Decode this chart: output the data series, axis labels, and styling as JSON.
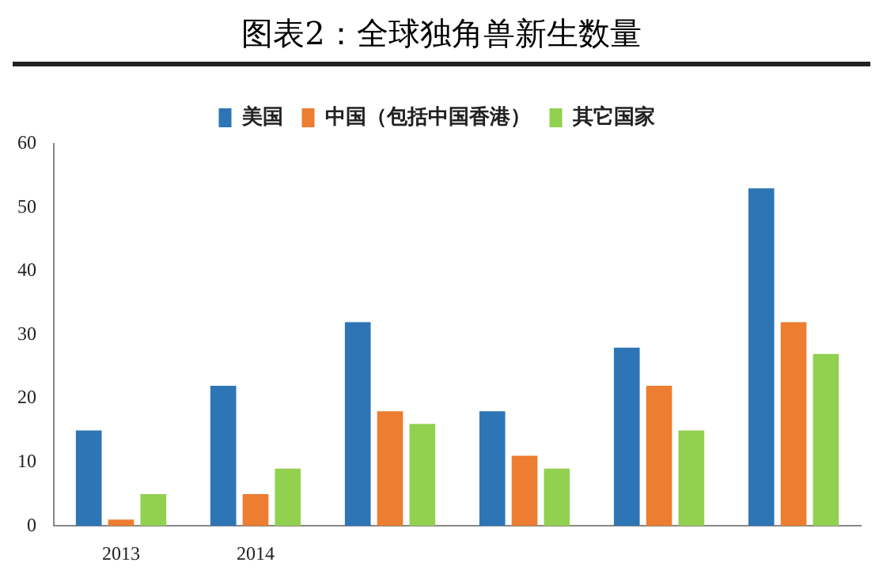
{
  "chart_data": {
    "type": "bar",
    "title": "图表2：全球独角兽新生数量",
    "categories": [
      "2013",
      "2014",
      null,
      null,
      null,
      null
    ],
    "series": [
      {
        "name": "美国",
        "color": "#2e75b6",
        "values": [
          15,
          22,
          32,
          18,
          28,
          53
        ]
      },
      {
        "name": "中国（包括中国香港）",
        "color": "#ed7d31",
        "values": [
          1,
          5,
          18,
          11,
          22,
          32
        ]
      },
      {
        "name": "其它国家",
        "color": "#92d050",
        "values": [
          5,
          9,
          16,
          9,
          15,
          27
        ]
      }
    ],
    "ylim": [
      0,
      60
    ],
    "yticks": [
      0,
      10,
      20,
      30,
      40,
      50,
      60
    ],
    "grid": false,
    "legend": "top"
  }
}
